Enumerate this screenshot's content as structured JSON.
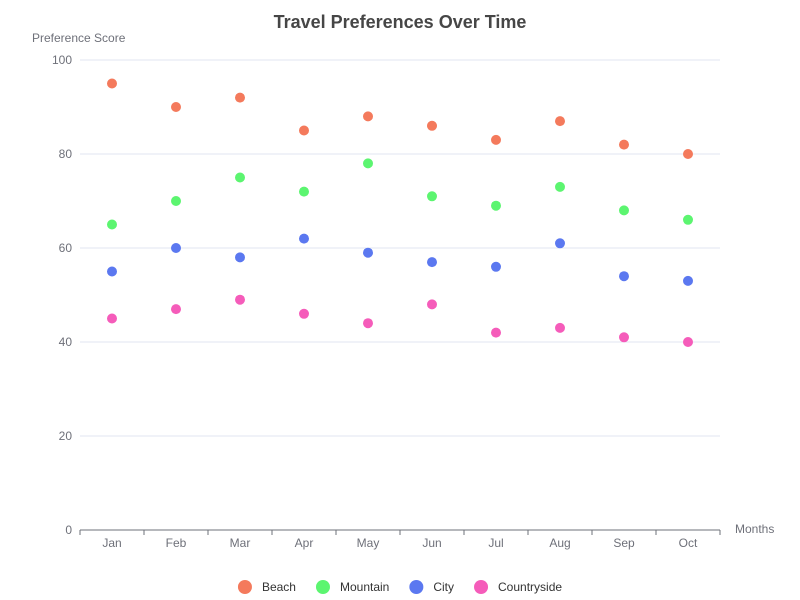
{
  "chart_data": {
    "type": "scatter",
    "title": "Travel Preferences Over Time",
    "xlabel": "Months",
    "ylabel": "Preference Score",
    "categories": [
      "Jan",
      "Feb",
      "Mar",
      "Apr",
      "May",
      "Jun",
      "Jul",
      "Aug",
      "Sep",
      "Oct"
    ],
    "ylim": [
      0,
      100
    ],
    "yticks": [
      0,
      20,
      40,
      60,
      80,
      100
    ],
    "grid": true,
    "legend_position": "bottom",
    "series": [
      {
        "name": "Beach",
        "color": "#f47a5c",
        "values": [
          95,
          90,
          92,
          85,
          88,
          86,
          83,
          87,
          82,
          80
        ]
      },
      {
        "name": "Mountain",
        "color": "#5cf570",
        "values": [
          65,
          70,
          75,
          72,
          78,
          71,
          69,
          73,
          68,
          66
        ]
      },
      {
        "name": "City",
        "color": "#5b78f0",
        "values": [
          55,
          60,
          58,
          62,
          59,
          57,
          56,
          61,
          54,
          53
        ]
      },
      {
        "name": "Countryside",
        "color": "#f55cba",
        "values": [
          45,
          47,
          49,
          46,
          44,
          48,
          42,
          43,
          41,
          40
        ]
      }
    ]
  }
}
